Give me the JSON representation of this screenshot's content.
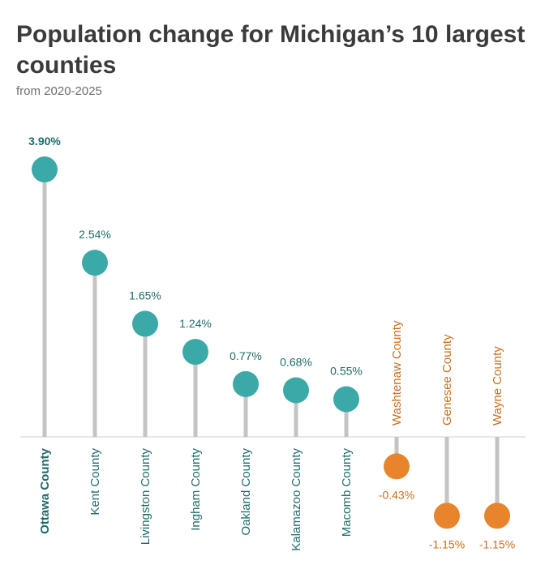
{
  "title": "Population change for Michigan’s 10 largest counties",
  "subtitle": "from 2020-2025",
  "colors": {
    "positive": "#3aa9a8",
    "negative": "#e8842c",
    "positive_text": "#1f6b6a",
    "negative_text": "#c96f1c",
    "stem": "#c4c4c4",
    "axis": "#d0d0d0"
  },
  "chart_data": {
    "type": "lollipop",
    "title": "Population change for Michigan’s 10 largest counties",
    "subtitle": "from 2020-2025",
    "xlabel": "",
    "ylabel": "",
    "unit": "%",
    "ylim": [
      -1.3,
      4.2
    ],
    "grid": false,
    "highlight": "Ottawa County",
    "categories": [
      "Ottawa County",
      "Kent County",
      "Livingston County",
      "Ingham County",
      "Oakland County",
      "Kalamazoo County",
      "Macomb County",
      "Washtenaw County",
      "Genesee County",
      "Wayne County"
    ],
    "values": [
      3.9,
      2.54,
      1.65,
      1.24,
      0.77,
      0.68,
      0.55,
      -0.43,
      -1.15,
      -1.15
    ],
    "value_labels": [
      "3.90%",
      "2.54%",
      "1.65%",
      "1.24%",
      "0.77%",
      "0.68%",
      "0.55%",
      "-0.43%",
      "-1.15%",
      "-1.15%"
    ]
  }
}
